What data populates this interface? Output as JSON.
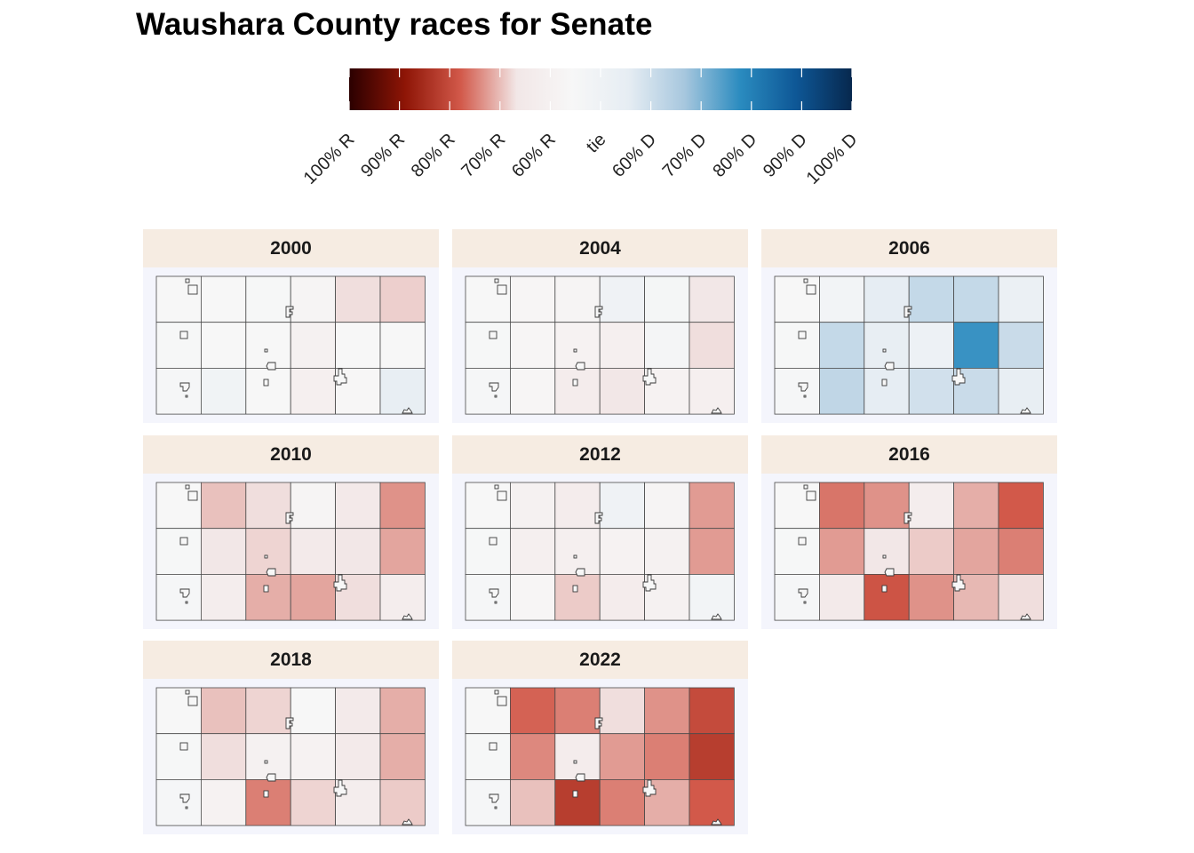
{
  "chart_data": {
    "type": "heatmap",
    "title": "Waushara County races for Senate",
    "legend": {
      "labels": [
        "100% R",
        "90% R",
        "80% R",
        "70% R",
        "60% R",
        "tie",
        "60% D",
        "70% D",
        "80% D",
        "90% D",
        "100% D"
      ],
      "gradient_colors": [
        "#2b0000",
        "#8e1506",
        "#d2594a",
        "#f2e7e7",
        "#f7f7f7",
        "#e6edf3",
        "#a7c7de",
        "#2a8bbf",
        "#0e5796",
        "#07284e"
      ]
    },
    "grid": {
      "rows": 3,
      "cols": 6
    },
    "facets": [
      {
        "year": "2000",
        "cells": [
          [
            0,
            0,
            1,
            -4,
            -22,
            -25
          ],
          [
            1,
            0,
            0,
            -8,
            0,
            0
          ],
          [
            2,
            8,
            0,
            -10,
            -1,
            18
          ]
        ]
      },
      {
        "year": "2004",
        "cells": [
          [
            0,
            -2,
            -4,
            10,
            3,
            -20
          ],
          [
            1,
            -2,
            -6,
            -10,
            4,
            -22
          ],
          [
            2,
            -2,
            -14,
            -20,
            -6,
            -10
          ]
        ]
      },
      {
        "year": "2006",
        "cells": [
          [
            0,
            6,
            20,
            36,
            36,
            14
          ],
          [
            1,
            36,
            18,
            12,
            72,
            34
          ],
          [
            2,
            38,
            20,
            30,
            34,
            18
          ]
        ]
      },
      {
        "year": "2010",
        "cells": [
          [
            0,
            -28,
            -22,
            -4,
            -18,
            -38
          ],
          [
            1,
            -20,
            -24,
            -16,
            -20,
            -34
          ],
          [
            2,
            -12,
            -32,
            -34,
            -22,
            -12
          ]
        ]
      },
      {
        "year": "2012",
        "cells": [
          [
            0,
            -8,
            -14,
            10,
            -4,
            -36
          ],
          [
            1,
            -10,
            -10,
            -6,
            -8,
            -36
          ],
          [
            2,
            -2,
            -26,
            -14,
            -8,
            6
          ]
        ]
      },
      {
        "year": "2016",
        "cells": [
          [
            0,
            -44,
            -38,
            -12,
            -32,
            -50
          ],
          [
            1,
            -36,
            -20,
            -26,
            -34,
            -42
          ],
          [
            2,
            -16,
            -52,
            -38,
            -30,
            -22
          ]
        ]
      },
      {
        "year": "2018",
        "cells": [
          [
            0,
            -28,
            -24,
            0,
            -16,
            -32
          ],
          [
            1,
            -22,
            -8,
            -6,
            -16,
            -32
          ],
          [
            2,
            -6,
            -42,
            -24,
            -12,
            -26
          ]
        ]
      },
      {
        "year": "2022",
        "cells": [
          [
            0,
            -48,
            -42,
            -22,
            -38,
            -56
          ],
          [
            1,
            -40,
            -14,
            -36,
            -42,
            -62
          ],
          [
            2,
            -28,
            -62,
            -42,
            -32,
            -50
          ]
        ]
      }
    ]
  }
}
